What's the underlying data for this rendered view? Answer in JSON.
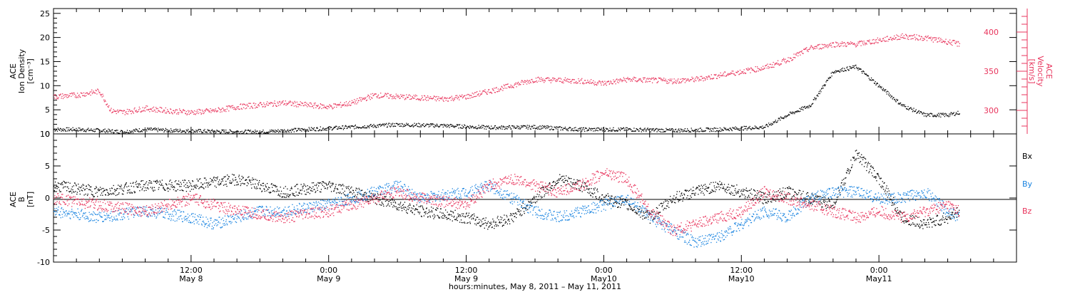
{
  "chart_data": [
    {
      "type": "scatter",
      "panel": "top",
      "ylabel_left": [
        "ACE",
        "Ion Density",
        "[cm⁻³]"
      ],
      "ylabel_right": [
        "ACE",
        "Velocity",
        "[km/s]"
      ],
      "ylim_left": [
        0,
        26
      ],
      "yticks_left": [
        "0",
        "5",
        "10",
        "15",
        "20",
        "25"
      ],
      "ylim_right": [
        270,
        430
      ],
      "yticks_right": [
        "300",
        "350",
        "400"
      ],
      "x_range_hours": [
        0,
        84
      ],
      "series": [
        {
          "axis": "left",
          "color": "#000000",
          "x": [
            0,
            2,
            4,
            6,
            8,
            10,
            14,
            18,
            22,
            26,
            30,
            34,
            38,
            42,
            46,
            50,
            54,
            58,
            62,
            64,
            66,
            68,
            70,
            72,
            74,
            76,
            78,
            79
          ],
          "y": [
            1,
            1,
            0.8,
            0.5,
            1,
            0.8,
            0.6,
            0.5,
            1,
            1.5,
            2,
            1.8,
            1.4,
            1.5,
            1,
            1,
            0.8,
            1,
            1.5,
            4,
            6,
            13,
            14,
            10,
            6,
            4,
            4,
            4.5
          ]
        },
        {
          "axis": "right",
          "color": "#e8345c",
          "x": [
            0,
            2,
            4,
            5,
            6,
            8,
            10,
            12,
            14,
            16,
            20,
            24,
            26,
            28,
            30,
            34,
            36,
            38,
            42,
            46,
            48,
            50,
            54,
            56,
            58,
            62,
            64,
            66,
            68,
            70,
            72,
            74,
            76,
            78,
            79
          ],
          "y": [
            318,
            320,
            325,
            300,
            298,
            303,
            300,
            298,
            300,
            305,
            310,
            305,
            310,
            320,
            318,
            315,
            318,
            325,
            340,
            338,
            335,
            340,
            338,
            340,
            345,
            355,
            365,
            380,
            385,
            385,
            390,
            395,
            393,
            388,
            385
          ]
        }
      ]
    },
    {
      "type": "scatter",
      "panel": "bottom",
      "ylabel_left": [
        "ACE",
        "B",
        "[nT]"
      ],
      "ylim": [
        -10,
        10
      ],
      "yticks": [
        "-10",
        "-5",
        "0",
        "5",
        "10"
      ],
      "x_range_hours": [
        0,
        84
      ],
      "legend": [
        "Bx",
        "By",
        "Bz"
      ],
      "series": [
        {
          "name": "Bx",
          "color": "#000000",
          "x": [
            0,
            4,
            8,
            12,
            16,
            20,
            24,
            28,
            32,
            36,
            38,
            40,
            44,
            46,
            48,
            50,
            52,
            54,
            58,
            60,
            62,
            64,
            66,
            68,
            70,
            72,
            74,
            76,
            78,
            79
          ],
          "y": [
            2,
            1,
            2,
            2,
            3,
            1,
            2,
            0,
            -2,
            -3,
            -4,
            -3,
            3,
            2,
            0,
            -1,
            -3,
            0,
            2,
            1,
            0,
            1,
            0,
            -1,
            7,
            3,
            -3,
            -4,
            -3,
            -2
          ]
        },
        {
          "name": "By",
          "color": "#1a84e0",
          "x": [
            0,
            4,
            8,
            12,
            14,
            16,
            18,
            20,
            24,
            28,
            30,
            32,
            36,
            38,
            40,
            42,
            44,
            46,
            48,
            50,
            52,
            54,
            56,
            58,
            60,
            62,
            64,
            66,
            68,
            70,
            72,
            74,
            76,
            78,
            79
          ],
          "y": [
            -2,
            -3,
            -2,
            -3,
            -4,
            -3,
            -2,
            -2,
            -1,
            1,
            2,
            0,
            1,
            2,
            0,
            -2,
            -3,
            -2,
            -1,
            0,
            -3,
            -5,
            -7,
            -6,
            -4,
            -2,
            -3,
            0,
            1,
            1,
            0,
            0,
            1,
            -2,
            -3
          ]
        },
        {
          "name": "Bz",
          "color": "#e8345c",
          "x": [
            0,
            4,
            8,
            10,
            12,
            14,
            16,
            20,
            24,
            28,
            30,
            32,
            36,
            38,
            40,
            42,
            44,
            46,
            48,
            50,
            52,
            54,
            56,
            58,
            60,
            62,
            64,
            66,
            68,
            70,
            72,
            74,
            76,
            78,
            79
          ],
          "y": [
            0,
            -1,
            -2,
            -1,
            0,
            -1,
            -2,
            -3,
            -2,
            0,
            1,
            0,
            -1,
            2,
            3,
            2,
            1,
            2,
            4,
            3,
            -2,
            -5,
            -4,
            -3,
            -2,
            1,
            0,
            -1,
            -2,
            -3,
            -2,
            -3,
            -2,
            -1,
            -2
          ]
        }
      ]
    }
  ],
  "x_axis": {
    "tick_labels": [
      {
        "time": "12:00",
        "date": "May 8",
        "hour": 12
      },
      {
        "time": "0:00",
        "date": "May 9",
        "hour": 24
      },
      {
        "time": "12:00",
        "date": "May 9",
        "hour": 36
      },
      {
        "time": "0:00",
        "date": "May10",
        "hour": 48
      },
      {
        "time": "12:00",
        "date": "May10",
        "hour": 60
      },
      {
        "time": "0:00",
        "date": "May11",
        "hour": 72
      }
    ],
    "xlabel": "hours:minutes, May  8, 2011 – May 11, 2011"
  }
}
